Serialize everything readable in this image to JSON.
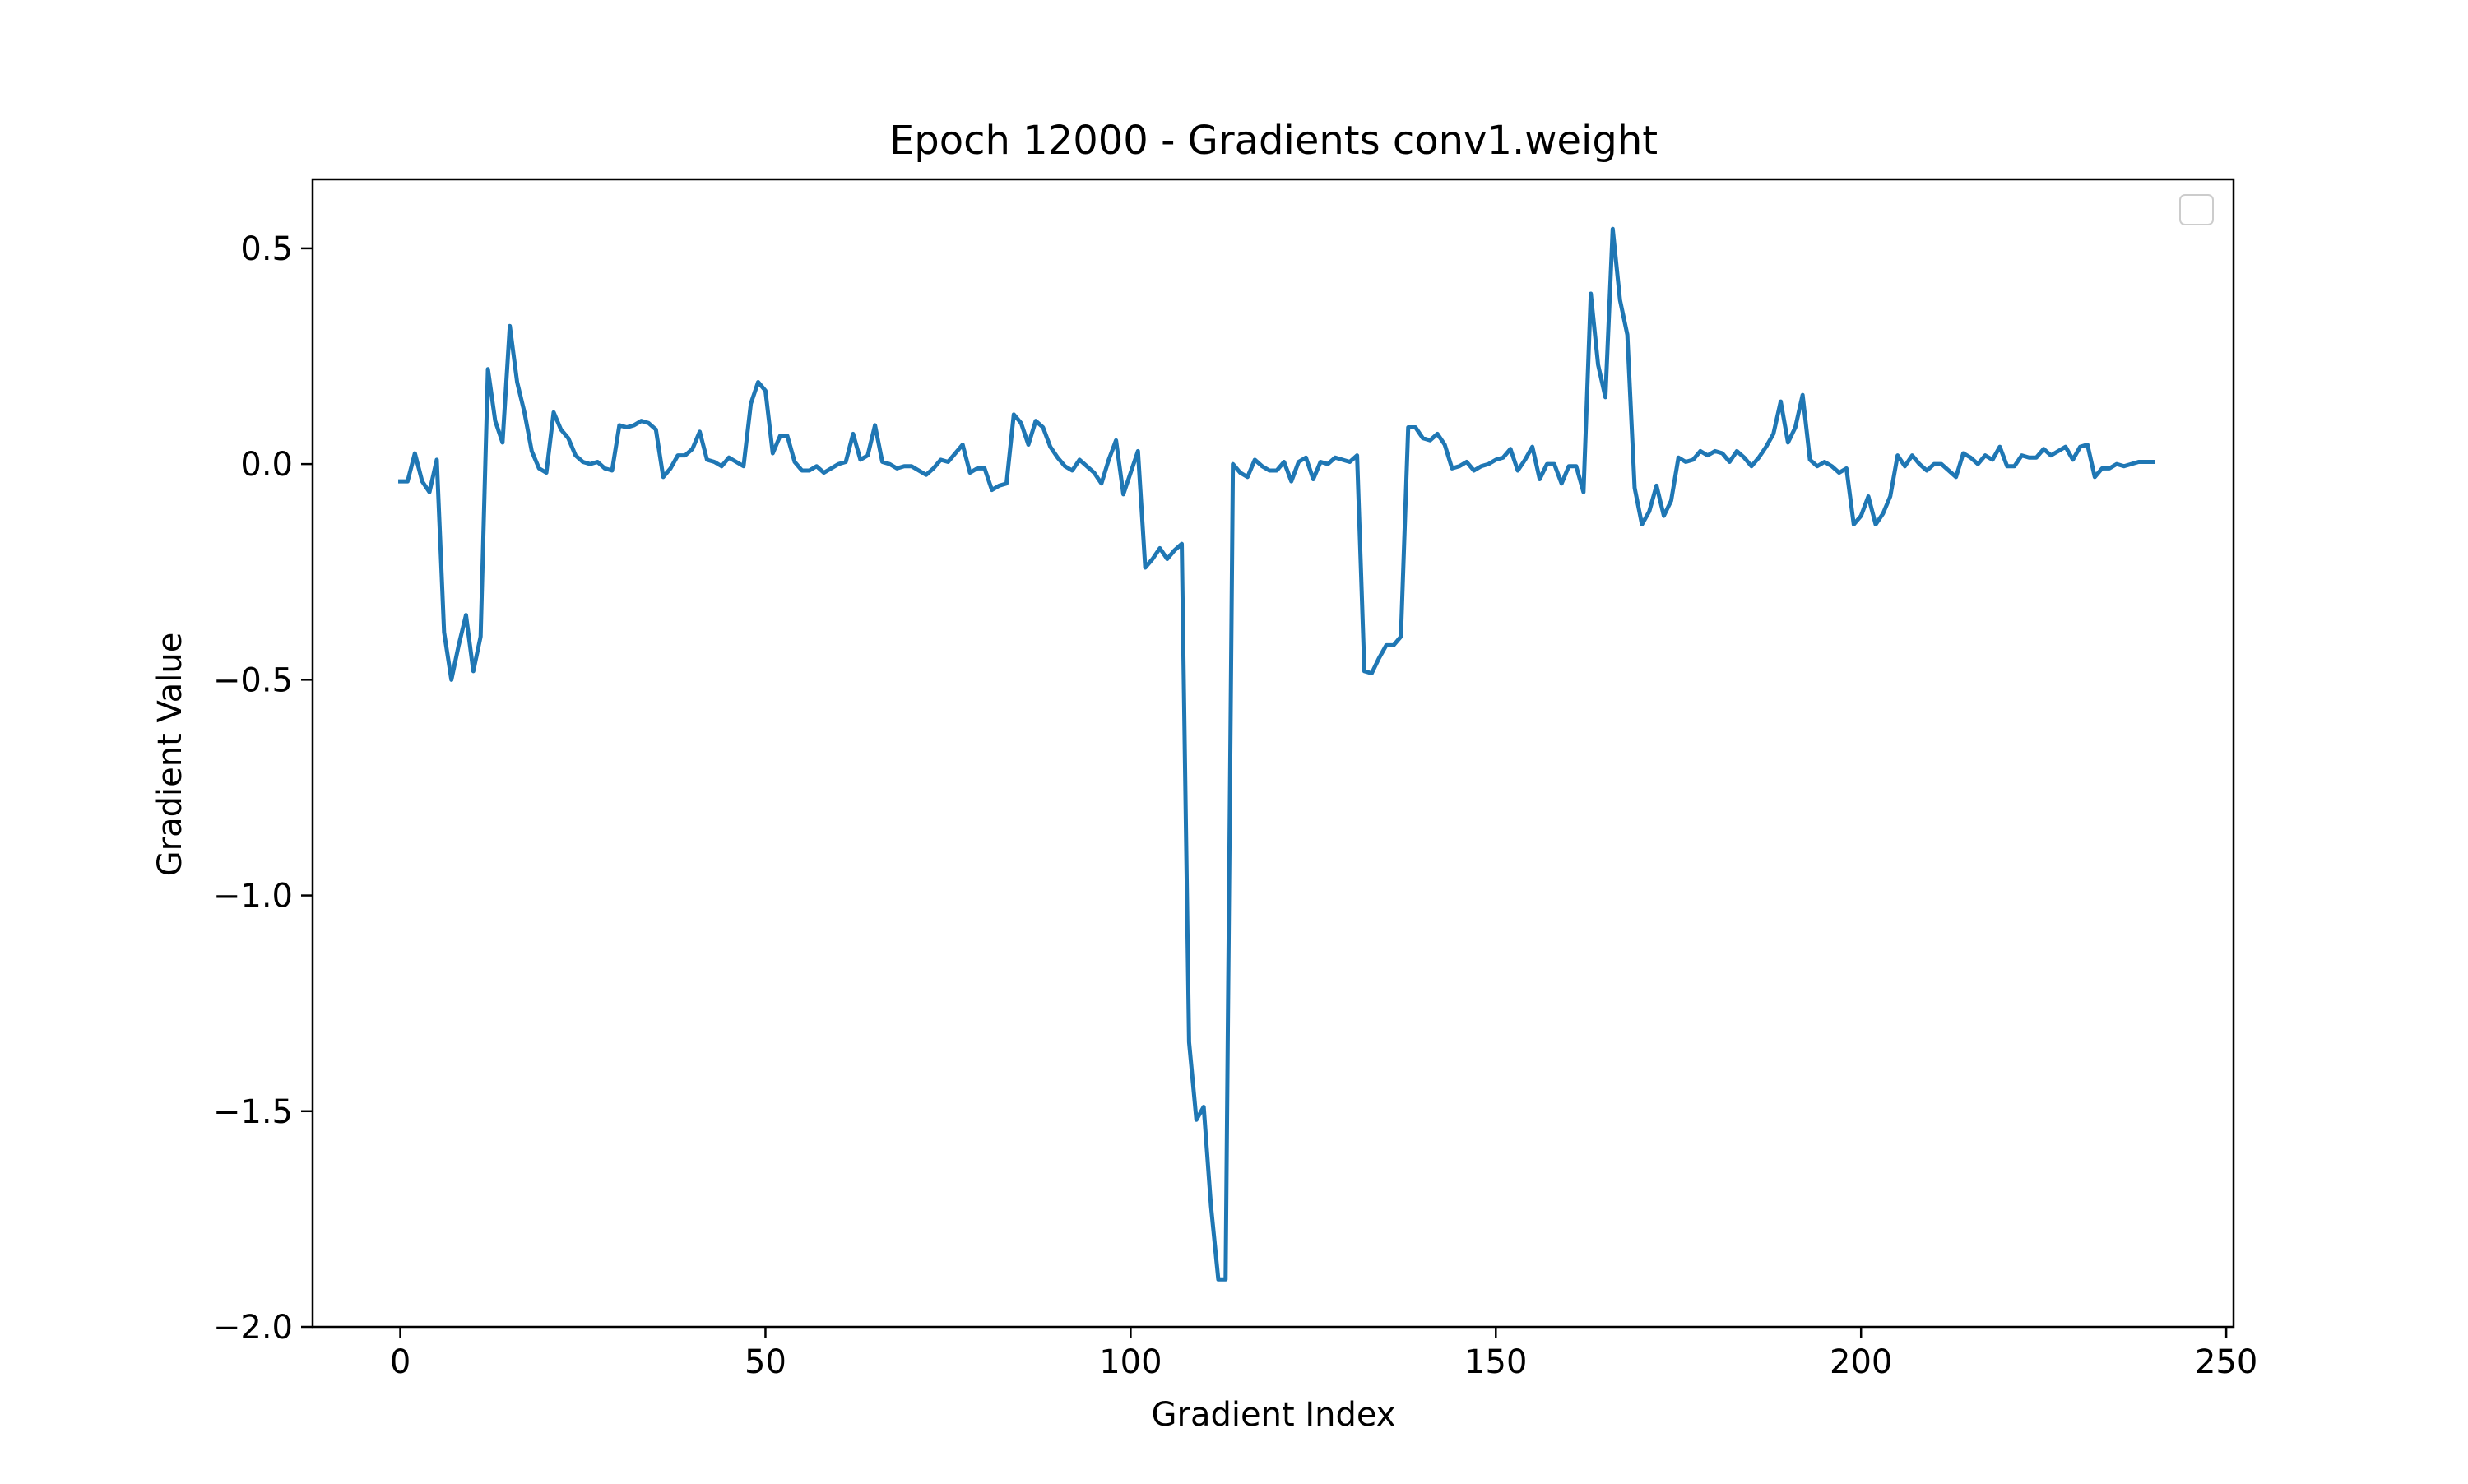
{
  "chart_data": {
    "type": "line",
    "title": "Epoch 12000 - Gradients conv1.weight",
    "xlabel": "Gradient Index",
    "ylabel": "Gradient Value",
    "xlim": [
      -12,
      251
    ],
    "ylim": [
      -2.0,
      0.66
    ],
    "xticks": [
      0,
      50,
      100,
      150,
      200,
      250
    ],
    "xtick_labels": [
      "0",
      "50",
      "100",
      "150",
      "200",
      "250"
    ],
    "yticks": [
      0.5,
      0.0,
      -0.5,
      -1.0,
      -1.5,
      -2.0
    ],
    "ytick_labels": [
      "0.5",
      "0.0",
      "−0.5",
      "−1.0",
      "−1.5",
      "−2.0"
    ],
    "grid": false,
    "legend": {
      "placement": "top-right",
      "entries": []
    },
    "series": [
      {
        "color": "#1f77b4",
        "x_start": 0,
        "x_step": 1,
        "values": [
          -0.04,
          -0.04,
          0.025,
          -0.04,
          -0.065,
          0.01,
          -0.39,
          -0.5,
          -0.42,
          -0.35,
          -0.48,
          -0.4,
          0.22,
          0.1,
          0.05,
          0.32,
          0.19,
          0.12,
          0.03,
          -0.01,
          -0.02,
          0.12,
          0.08,
          0.06,
          0.02,
          0.005,
          0.0,
          0.005,
          -0.01,
          -0.015,
          0.09,
          0.085,
          0.09,
          0.1,
          0.095,
          0.08,
          -0.03,
          -0.01,
          0.02,
          0.02,
          0.035,
          0.075,
          0.01,
          0.005,
          -0.005,
          0.015,
          0.005,
          -0.005,
          0.14,
          0.19,
          0.17,
          0.025,
          0.065,
          0.065,
          0.005,
          -0.015,
          -0.015,
          -0.005,
          -0.02,
          -0.01,
          0.0,
          0.005,
          0.07,
          0.01,
          0.02,
          0.09,
          0.005,
          0.0,
          -0.01,
          -0.005,
          -0.005,
          -0.015,
          -0.025,
          -0.01,
          0.01,
          0.005,
          0.025,
          0.045,
          -0.02,
          -0.01,
          -0.01,
          -0.06,
          -0.05,
          -0.045,
          0.115,
          0.095,
          0.045,
          0.1,
          0.085,
          0.04,
          0.015,
          -0.005,
          -0.015,
          0.01,
          -0.005,
          -0.02,
          -0.045,
          0.01,
          0.055,
          -0.07,
          -0.02,
          0.03,
          -0.24,
          -0.22,
          -0.195,
          -0.22,
          -0.2,
          -0.185,
          -1.34,
          -1.52,
          -1.49,
          -1.72,
          -1.89,
          -1.89,
          0.0,
          -0.02,
          -0.03,
          0.01,
          -0.005,
          -0.015,
          -0.015,
          0.005,
          -0.04,
          0.005,
          0.015,
          -0.035,
          0.005,
          0.0,
          0.015,
          0.01,
          0.005,
          0.02,
          -0.48,
          -0.485,
          -0.45,
          -0.42,
          -0.42,
          -0.4,
          0.085,
          0.085,
          0.06,
          0.055,
          0.07,
          0.045,
          -0.01,
          -0.005,
          0.005,
          -0.015,
          -0.005,
          0.0,
          0.01,
          0.015,
          0.035,
          -0.015,
          0.01,
          0.04,
          -0.035,
          0.0,
          0.0,
          -0.045,
          -0.005,
          -0.005,
          -0.065,
          0.395,
          0.23,
          0.155,
          0.545,
          0.38,
          0.3,
          -0.055,
          -0.14,
          -0.11,
          -0.05,
          -0.12,
          -0.085,
          0.015,
          0.005,
          0.01,
          0.03,
          0.02,
          0.03,
          0.025,
          0.005,
          0.03,
          0.015,
          -0.005,
          0.015,
          0.04,
          0.07,
          0.145,
          0.05,
          0.085,
          0.16,
          0.01,
          -0.005,
          0.005,
          -0.005,
          -0.02,
          -0.01,
          -0.14,
          -0.12,
          -0.075,
          -0.14,
          -0.115,
          -0.075,
          0.02,
          -0.005,
          0.02,
          0.0,
          -0.015,
          0.0,
          0.0,
          -0.015,
          -0.03,
          0.025,
          0.015,
          0.0,
          0.02,
          0.01,
          0.04,
          -0.005,
          -0.005,
          0.02,
          0.015,
          0.015,
          0.035,
          0.02,
          0.03,
          0.04,
          0.01,
          0.04,
          0.045,
          -0.03,
          -0.01,
          -0.01,
          0.0,
          -0.005,
          0.0,
          0.005,
          0.005,
          0.005
        ]
      }
    ]
  }
}
